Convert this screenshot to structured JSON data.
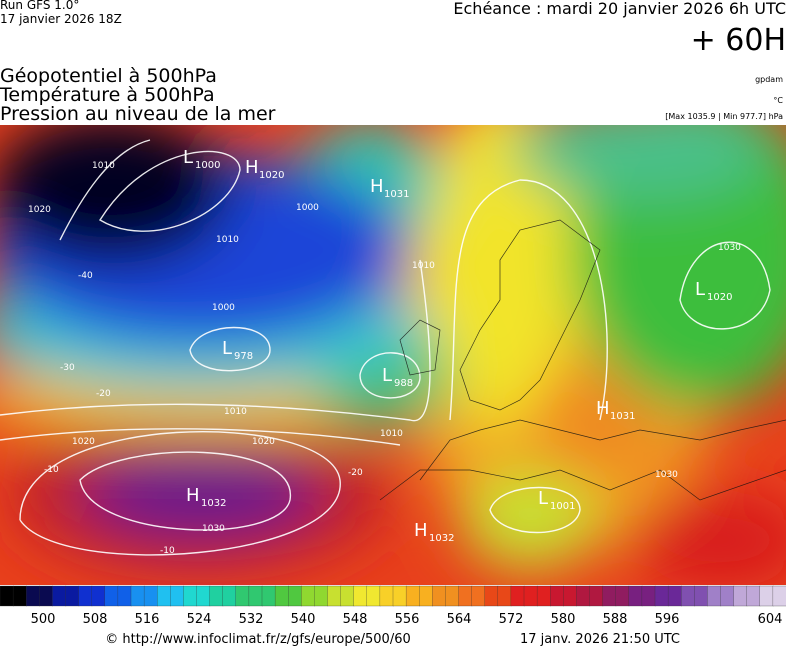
{
  "header": {
    "run": "Run GFS 1.0°",
    "run_date": "17 janvier 2026 18Z",
    "valid": "Echéance : mardi 20 janvier 2026 6h UTC",
    "lead": "+ 60H",
    "fields": [
      "Géopotentiel à 500hPa",
      "Température à 500hPa",
      "Pression au niveau de la mer"
    ],
    "units": [
      "gpdam",
      "°C",
      "[Max 1035.9 | Min 977.7] hPa"
    ]
  },
  "centers": [
    {
      "kind": "L",
      "value": "1000"
    },
    {
      "kind": "H",
      "value": "1020"
    },
    {
      "kind": "H",
      "value": "1031"
    },
    {
      "kind": "L",
      "value": "978"
    },
    {
      "kind": "L",
      "value": "988"
    },
    {
      "kind": "H",
      "value": "1032"
    },
    {
      "kind": "H",
      "value": "1032"
    },
    {
      "kind": "L",
      "value": "1001"
    },
    {
      "kind": "H",
      "value": "1031"
    },
    {
      "kind": "L",
      "value": "1020"
    }
  ],
  "isobar_labels": [
    "1010",
    "1020",
    "1010",
    "1000",
    "1010",
    "1020",
    "1020",
    "1030",
    "1010",
    "1030",
    "1010",
    "1000",
    "1030"
  ],
  "temperature_labels": [
    "-40",
    "-30",
    "-20",
    "-10",
    "-10",
    "-20"
  ],
  "colorbar": {
    "labels": [
      "500",
      "508",
      "516",
      "524",
      "532",
      "540",
      "548",
      "556",
      "564",
      "572",
      "580",
      "588",
      "596",
      "604"
    ]
  },
  "footer": {
    "source": "© http://www.infoclimat.fr/z/gfs/europe/500/60",
    "generated": "17 janv. 2026 21:50 UTC"
  }
}
